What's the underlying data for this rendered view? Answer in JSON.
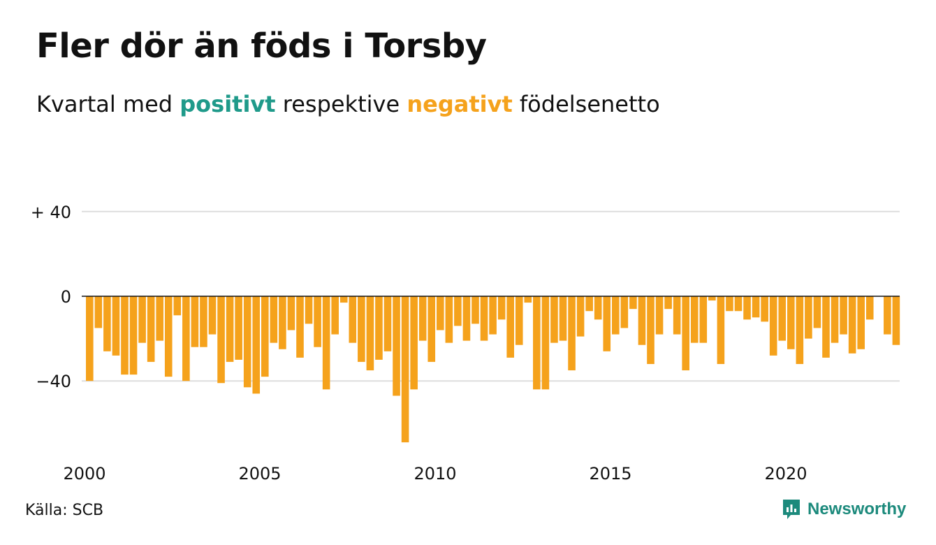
{
  "title": "Fler dör än föds i Torsby",
  "subtitle": {
    "pre": "Kvartal med ",
    "positive": "positivt",
    "mid": " respektive ",
    "negative": "negativt",
    "post": " födelsenetto"
  },
  "colors": {
    "positive": "#1f9a8a",
    "negative": "#f5a21c",
    "brand": "#1c8a7c",
    "grid": "#dddddd",
    "zero_line": "#111111"
  },
  "source": "Källa: SCB",
  "brand": {
    "name": "Newsworthy",
    "icon": "newsworthy-logo-icon"
  },
  "chart_data": {
    "type": "bar",
    "title": "Fler dör än föds i Torsby",
    "subtitle": "Kvartal med positivt respektive negativt födelsenetto",
    "xlabel": "",
    "ylabel": "",
    "ylim": [
      -72,
      55
    ],
    "yticks": [
      40,
      0,
      -40
    ],
    "ytick_labels": [
      "+ 40",
      "0",
      "−40"
    ],
    "xticks": [
      "2000",
      "2005",
      "2010",
      "2015",
      "2020"
    ],
    "grid": true,
    "start_quarter": "2000 Q1",
    "values": [
      -40,
      -15,
      -26,
      -28,
      -37,
      -37,
      -22,
      -31,
      -21,
      -38,
      -9,
      -40,
      -24,
      -24,
      -18,
      -41,
      -31,
      -30,
      -43,
      -46,
      -38,
      -22,
      -25,
      -16,
      -29,
      -13,
      -24,
      -44,
      -18,
      -3,
      -22,
      -31,
      -35,
      -30,
      -26,
      -47,
      -69,
      -44,
      -21,
      -31,
      -16,
      -22,
      -14,
      -21,
      -13,
      -21,
      -18,
      -11,
      -29,
      -23,
      -3,
      -44,
      -44,
      -22,
      -21,
      -35,
      -19,
      -7,
      -11,
      -26,
      -18,
      -15,
      -6,
      -23,
      -32,
      -18,
      -6,
      -18,
      -35,
      -22,
      -22,
      -2,
      -32,
      -7,
      -7,
      -11,
      -10,
      -12,
      -28,
      -21,
      -25,
      -32,
      -20,
      -15,
      -29,
      -22,
      -18,
      -27,
      -25,
      -11,
      0,
      -18,
      -23
    ]
  }
}
